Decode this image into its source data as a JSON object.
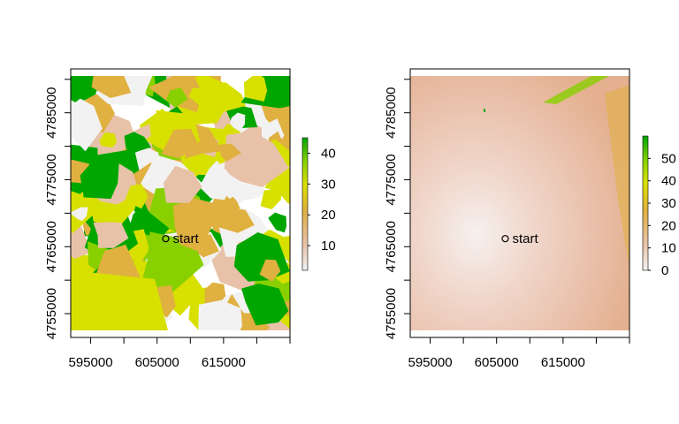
{
  "panels": [
    {
      "id": "left",
      "type": "raster-map",
      "style": "patchy",
      "xaxis": {
        "ticks": [
          595000,
          605000,
          615000
        ],
        "range": [
          592000,
          625000
        ]
      },
      "yaxis": {
        "ticks": [
          4755000,
          4765000,
          4775000,
          4785000
        ],
        "range": [
          4752500,
          4790500
        ]
      },
      "legend": {
        "ticks": [
          10,
          20,
          30,
          40
        ],
        "range": [
          2,
          45
        ]
      },
      "marker": {
        "label": "start",
        "x": 606300,
        "y": 4766200
      },
      "colors": {
        "low": "#f2f2f2",
        "mid_low": "#e8c2a8",
        "mid": "#e0b040",
        "mid_high": "#d8e000",
        "high_mid": "#88d000",
        "high": "#00a600"
      }
    },
    {
      "id": "right",
      "type": "raster-map",
      "style": "smooth",
      "xaxis": {
        "ticks": [
          595000,
          605000,
          615000
        ],
        "range": [
          592000,
          625000
        ]
      },
      "yaxis": {
        "ticks": [
          4755000,
          4765000,
          4775000,
          4785000
        ],
        "range": [
          4752500,
          4790500
        ]
      },
      "legend": {
        "ticks": [
          0,
          10,
          20,
          30,
          40,
          50
        ],
        "range": [
          0,
          60
        ]
      },
      "marker": {
        "label": "start",
        "x": 606300,
        "y": 4766200
      },
      "colors": {
        "low": "#f2f2f2",
        "mid_low": "#e8c2a8",
        "mid": "#e0b040",
        "mid_high": "#d8e000",
        "high_mid": "#88d000",
        "high": "#00a600"
      }
    }
  ]
}
